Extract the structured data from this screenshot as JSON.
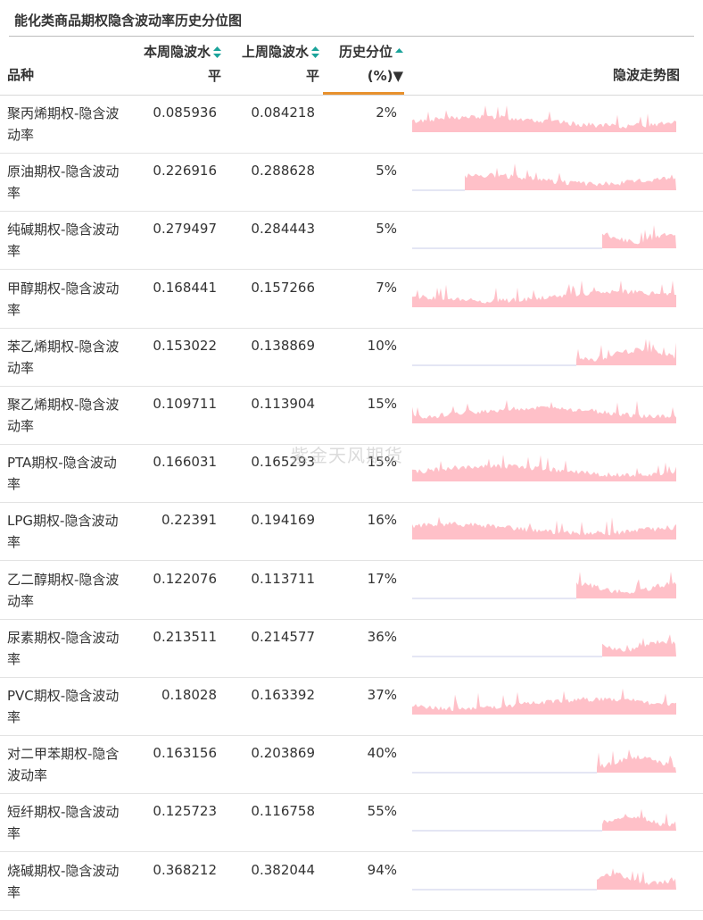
{
  "page": {
    "title": "能化类商品期权隐含波动率历史分位图",
    "watermark": "紫金天风期货"
  },
  "table": {
    "columns": {
      "name": "品种",
      "current_line1": "本周隐波水",
      "current_line2": "平",
      "previous_line1": "上周隐波水",
      "previous_line2": "平",
      "percentile_line1": "历史分位",
      "percentile_line2": "(%)▼",
      "trend": "隐波走势图"
    },
    "colors": {
      "sort_icon": "#1aa39a",
      "active_underline": "#e8912d",
      "sparkline_fill": "#ffc0c8",
      "sparkline_baseline": "#c8cde8"
    },
    "rows": [
      {
        "name": "聚丙烯期权-隐含波动率",
        "current": "0.085936",
        "previous": "0.084218",
        "percentile": "2%",
        "spark_start": 0.0
      },
      {
        "name": "原油期权-隐含波动率",
        "current": "0.226916",
        "previous": "0.288628",
        "percentile": "5%",
        "spark_start": 0.2
      },
      {
        "name": "纯碱期权-隐含波动率",
        "current": "0.279497",
        "previous": "0.284443",
        "percentile": "5%",
        "spark_start": 0.72
      },
      {
        "name": "甲醇期权-隐含波动率",
        "current": "0.168441",
        "previous": "0.157266",
        "percentile": "7%",
        "spark_start": 0.0
      },
      {
        "name": "苯乙烯期权-隐含波动率",
        "current": "0.153022",
        "previous": "0.138869",
        "percentile": "10%",
        "spark_start": 0.62
      },
      {
        "name": "聚乙烯期权-隐含波动率",
        "current": "0.109711",
        "previous": "0.113904",
        "percentile": "15%",
        "spark_start": 0.0
      },
      {
        "name": "PTA期权-隐含波动率",
        "current": "0.166031",
        "previous": "0.165293",
        "percentile": "15%",
        "spark_start": 0.0
      },
      {
        "name": "LPG期权-隐含波动率",
        "current": "0.22391",
        "previous": "0.194169",
        "percentile": "16%",
        "spark_start": 0.0
      },
      {
        "name": "乙二醇期权-隐含波动率",
        "current": "0.122076",
        "previous": "0.113711",
        "percentile": "17%",
        "spark_start": 0.62
      },
      {
        "name": "尿素期权-隐含波动率",
        "current": "0.213511",
        "previous": "0.214577",
        "percentile": "36%",
        "spark_start": 0.72
      },
      {
        "name": "PVC期权-隐含波动率",
        "current": "0.18028",
        "previous": "0.163392",
        "percentile": "37%",
        "spark_start": 0.0
      },
      {
        "name": "对二甲苯期权-隐含波动率",
        "current": "0.163156",
        "previous": "0.203869",
        "percentile": "40%",
        "spark_start": 0.7
      },
      {
        "name": "短纤期权-隐含波动率",
        "current": "0.125723",
        "previous": "0.116758",
        "percentile": "55%",
        "spark_start": 0.72
      },
      {
        "name": "烧碱期权-隐含波动率",
        "current": "0.368212",
        "previous": "0.382044",
        "percentile": "94%",
        "spark_start": 0.7
      }
    ]
  }
}
